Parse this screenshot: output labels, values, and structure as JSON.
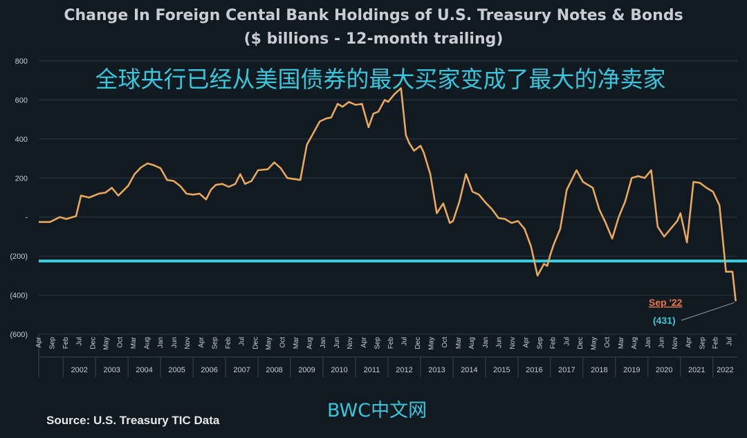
{
  "chart_data": {
    "type": "line",
    "title": "Change In Foreign Cental Bank Holdings of U.S. Treasury Notes & Bonds",
    "subtitle": "($ billions - 12-month trailing)",
    "overlay_text": "全球央行已经从美国债券的最大买家变成了最大的净卖家",
    "source": "Source:  U.S. Treasury TIC Data",
    "watermark": "BWC中文网",
    "y_ticks": [
      "800",
      "600",
      "400",
      "200",
      "-",
      "(200)",
      "(400)",
      "(600)"
    ],
    "ylim": [
      -600,
      800
    ],
    "xlim": [
      2001.25,
      2022.75
    ],
    "grid": true,
    "month_ticks": [
      {
        "x": 2001.25,
        "label": "Apr"
      },
      {
        "x": 2001.67,
        "label": "Sep"
      },
      {
        "x": 2002.08,
        "label": "Feb"
      },
      {
        "x": 2002.5,
        "label": "Jul"
      },
      {
        "x": 2002.92,
        "label": "Dec"
      },
      {
        "x": 2003.33,
        "label": "May"
      },
      {
        "x": 2003.75,
        "label": "Oct"
      },
      {
        "x": 2004.17,
        "label": "Mar"
      },
      {
        "x": 2004.58,
        "label": "Aug"
      },
      {
        "x": 2005.0,
        "label": "Jan"
      },
      {
        "x": 2005.42,
        "label": "Jun"
      },
      {
        "x": 2005.83,
        "label": "Nov"
      },
      {
        "x": 2006.25,
        "label": "Apr"
      },
      {
        "x": 2006.67,
        "label": "Sep"
      },
      {
        "x": 2007.08,
        "label": "Feb"
      },
      {
        "x": 2007.5,
        "label": "Jul"
      },
      {
        "x": 2007.92,
        "label": "Dec"
      },
      {
        "x": 2008.33,
        "label": "May"
      },
      {
        "x": 2008.75,
        "label": "Oct"
      },
      {
        "x": 2009.17,
        "label": "Mar"
      },
      {
        "x": 2009.58,
        "label": "Aug"
      },
      {
        "x": 2010.0,
        "label": "Jan"
      },
      {
        "x": 2010.42,
        "label": "Jun"
      },
      {
        "x": 2010.83,
        "label": "Nov"
      },
      {
        "x": 2011.25,
        "label": "Apr"
      },
      {
        "x": 2011.67,
        "label": "Sep"
      },
      {
        "x": 2012.08,
        "label": "Feb"
      },
      {
        "x": 2012.5,
        "label": "Jul"
      },
      {
        "x": 2012.92,
        "label": "Dec"
      },
      {
        "x": 2013.33,
        "label": "May"
      },
      {
        "x": 2013.75,
        "label": "Oct"
      },
      {
        "x": 2014.17,
        "label": "Mar"
      },
      {
        "x": 2014.58,
        "label": "Aug"
      },
      {
        "x": 2015.0,
        "label": "Jan"
      },
      {
        "x": 2015.42,
        "label": "Jun"
      },
      {
        "x": 2015.83,
        "label": "Nov"
      },
      {
        "x": 2016.25,
        "label": "Apr"
      },
      {
        "x": 2016.67,
        "label": "Sep"
      },
      {
        "x": 2017.08,
        "label": "Feb"
      },
      {
        "x": 2017.5,
        "label": "Jul"
      },
      {
        "x": 2017.92,
        "label": "Dec"
      },
      {
        "x": 2018.33,
        "label": "May"
      },
      {
        "x": 2018.75,
        "label": "Oct"
      },
      {
        "x": 2019.17,
        "label": "Mar"
      },
      {
        "x": 2019.58,
        "label": "Aug"
      },
      {
        "x": 2020.0,
        "label": "Jan"
      },
      {
        "x": 2020.42,
        "label": "Jun"
      },
      {
        "x": 2020.83,
        "label": "Nov"
      },
      {
        "x": 2021.25,
        "label": "Apr"
      },
      {
        "x": 2021.67,
        "label": "Sep"
      },
      {
        "x": 2022.08,
        "label": "Feb"
      },
      {
        "x": 2022.5,
        "label": "Jul"
      }
    ],
    "years": [
      "2002",
      "2003",
      "2004",
      "2005",
      "2006",
      "2007",
      "2008",
      "2009",
      "2010",
      "2011",
      "2012",
      "2013",
      "2014",
      "2015",
      "2016",
      "2017",
      "2018",
      "2019",
      "2020",
      "2021",
      "2022"
    ],
    "reference_line": {
      "y": -225,
      "color": "#38d3e2"
    },
    "series": [
      {
        "color": "#e9a85c",
        "x": [
          2001.25,
          2001.6,
          2001.9,
          2002.1,
          2002.4,
          2002.55,
          2002.8,
          2003.1,
          2003.3,
          2003.5,
          2003.7,
          2004.0,
          2004.2,
          2004.4,
          2004.6,
          2004.8,
          2005.0,
          2005.2,
          2005.4,
          2005.6,
          2005.8,
          2006.0,
          2006.2,
          2006.4,
          2006.55,
          2006.7,
          2006.9,
          2007.1,
          2007.3,
          2007.45,
          2007.6,
          2007.8,
          2008.0,
          2008.3,
          2008.5,
          2008.7,
          2008.9,
          2009.1,
          2009.3,
          2009.5,
          2009.6,
          2009.9,
          2010.1,
          2010.25,
          2010.45,
          2010.6,
          2010.8,
          2011.0,
          2011.2,
          2011.4,
          2011.55,
          2011.7,
          2011.9,
          2012.0,
          2012.2,
          2012.4,
          2012.55,
          2012.65,
          2012.8,
          2013.0,
          2013.1,
          2013.3,
          2013.5,
          2013.7,
          2013.9,
          2014.0,
          2014.2,
          2014.4,
          2014.6,
          2014.8,
          2015.0,
          2015.2,
          2015.4,
          2015.6,
          2015.8,
          2016.0,
          2016.2,
          2016.4,
          2016.6,
          2016.8,
          2016.9,
          2017.0,
          2017.1,
          2017.3,
          2017.5,
          2017.8,
          2018.0,
          2018.3,
          2018.5,
          2018.7,
          2018.9,
          2019.1,
          2019.3,
          2019.5,
          2019.7,
          2019.9,
          2020.1,
          2020.3,
          2020.5,
          2020.7,
          2020.9,
          2021.0,
          2021.2,
          2021.4,
          2021.6,
          2021.8,
          2022.0,
          2022.2,
          2022.4,
          2022.6,
          2022.7
        ],
        "y": [
          -25,
          -25,
          0,
          -10,
          5,
          110,
          100,
          120,
          125,
          150,
          110,
          160,
          220,
          255,
          275,
          265,
          250,
          190,
          185,
          160,
          120,
          115,
          120,
          90,
          140,
          165,
          170,
          155,
          170,
          220,
          170,
          185,
          240,
          245,
          280,
          250,
          200,
          195,
          190,
          370,
          400,
          490,
          505,
          510,
          580,
          565,
          590,
          575,
          580,
          460,
          530,
          540,
          600,
          590,
          630,
          660,
          420,
          380,
          340,
          365,
          330,
          220,
          20,
          70,
          -30,
          -20,
          80,
          220,
          130,
          115,
          75,
          40,
          -5,
          -10,
          -30,
          -20,
          -60,
          -150,
          -300,
          -240,
          -250,
          -190,
          -140,
          -60,
          140,
          240,
          180,
          150,
          40,
          -30,
          -110,
          0,
          80,
          200,
          210,
          200,
          240,
          -50,
          -100,
          -60,
          -20,
          20,
          -130,
          180,
          175,
          150,
          130,
          60,
          -280,
          -280,
          -431
        ]
      }
    ],
    "annotation": {
      "date": "Sep '22",
      "value": "(431)",
      "x": 2022.7,
      "y": -431
    }
  }
}
